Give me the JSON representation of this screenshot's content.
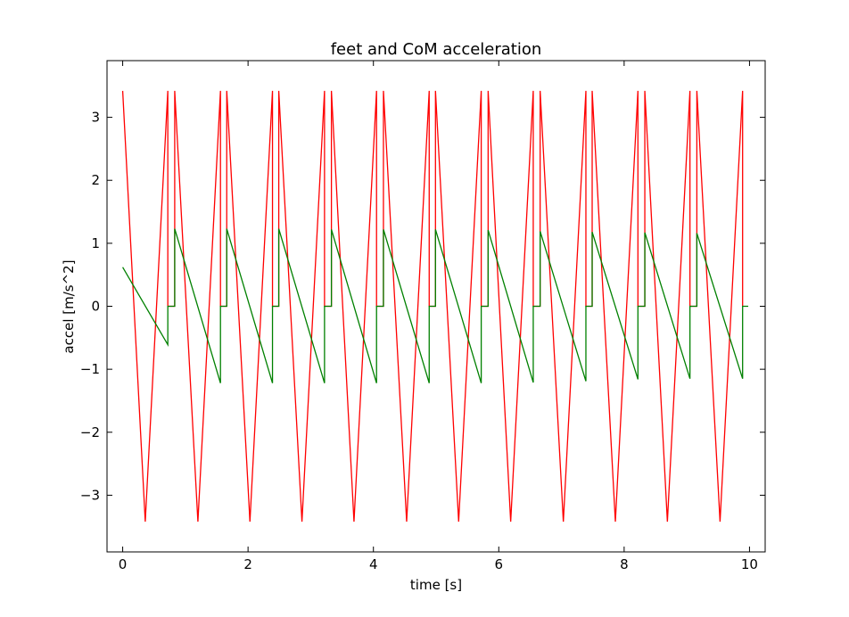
{
  "chart_data": {
    "type": "line",
    "title": "feet and CoM acceleration",
    "xlabel": "time [s]",
    "ylabel": "accel [m/s^2]",
    "xlim": [
      -0.25,
      10.25
    ],
    "ylim": [
      -3.9,
      3.9
    ],
    "xticks": [
      0,
      2,
      4,
      6,
      8,
      10
    ],
    "yticks": [
      -3,
      -2,
      -1,
      0,
      1,
      2,
      3
    ],
    "grid": false,
    "legend": "none",
    "series": [
      {
        "color": "#ff0000",
        "x": [
          0.0,
          0.36,
          0.72,
          0.72,
          0.83,
          0.83,
          1.2,
          1.56,
          1.56,
          1.66,
          1.66,
          2.03,
          2.39,
          2.39,
          2.49,
          2.49,
          2.86,
          3.22,
          3.22,
          3.33,
          3.33,
          3.69,
          4.05,
          4.05,
          4.16,
          4.16,
          4.53,
          4.89,
          4.89,
          4.99,
          4.99,
          5.36,
          5.72,
          5.72,
          5.83,
          5.83,
          6.19,
          6.55,
          6.55,
          6.66,
          6.66,
          7.03,
          7.39,
          7.39,
          7.49,
          7.49,
          7.86,
          8.22,
          8.22,
          8.33,
          8.33,
          8.69,
          9.05,
          9.05,
          9.16,
          9.16,
          9.53,
          9.89,
          9.89
        ],
        "y": [
          3.42,
          -3.42,
          3.42,
          0.0,
          0.0,
          3.42,
          -3.42,
          3.42,
          0.0,
          0.0,
          3.42,
          -3.42,
          3.42,
          0.0,
          0.0,
          3.42,
          -3.42,
          3.42,
          0.0,
          0.0,
          3.42,
          -3.42,
          3.42,
          0.0,
          0.0,
          3.42,
          -3.42,
          3.42,
          0.0,
          0.0,
          3.42,
          -3.42,
          3.42,
          0.0,
          0.0,
          3.42,
          -3.42,
          3.42,
          0.0,
          0.0,
          3.42,
          -3.42,
          3.42,
          0.0,
          0.0,
          3.42,
          -3.42,
          3.42,
          0.0,
          0.0,
          3.42,
          -3.42,
          3.42,
          0.0,
          0.0,
          3.42,
          -3.42,
          3.42,
          0.0
        ]
      },
      {
        "color": "#008000",
        "x": [
          0.0,
          0.72,
          0.72,
          0.83,
          0.83,
          1.56,
          1.56,
          1.66,
          1.66,
          2.39,
          2.39,
          2.49,
          2.49,
          3.22,
          3.22,
          3.33,
          3.33,
          4.05,
          4.05,
          4.16,
          4.16,
          4.89,
          4.89,
          4.99,
          4.99,
          5.72,
          5.72,
          5.83,
          5.83,
          6.55,
          6.55,
          6.66,
          6.66,
          7.39,
          7.39,
          7.49,
          7.49,
          8.22,
          8.22,
          8.33,
          8.33,
          9.05,
          9.05,
          9.16,
          9.16,
          9.89,
          9.89,
          9.98
        ],
        "y": [
          0.62,
          -0.61,
          0.0,
          0.0,
          1.23,
          -1.22,
          0.0,
          0.0,
          1.23,
          -1.22,
          0.0,
          0.0,
          1.23,
          -1.22,
          0.0,
          0.0,
          1.22,
          -1.22,
          0.0,
          0.0,
          1.22,
          -1.22,
          0.0,
          0.0,
          1.22,
          -1.22,
          0.0,
          0.0,
          1.21,
          -1.21,
          0.0,
          0.0,
          1.19,
          -1.19,
          0.0,
          0.0,
          1.18,
          -1.16,
          0.0,
          0.0,
          1.17,
          -1.15,
          0.0,
          0.0,
          1.16,
          -1.15,
          0.0,
          0.0
        ]
      }
    ]
  }
}
